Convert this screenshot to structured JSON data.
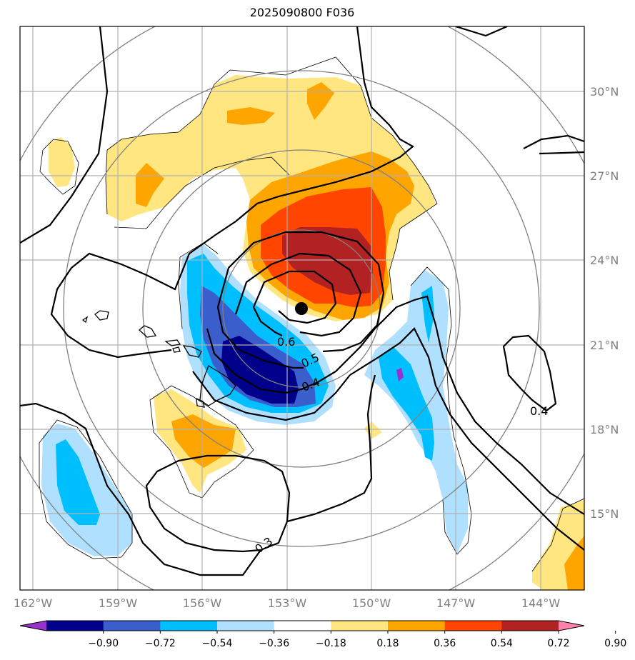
{
  "title": "2025090800 F036",
  "axes": {
    "lat_labels": [
      "30°N",
      "27°N",
      "24°N",
      "21°N",
      "18°N",
      "15°N"
    ],
    "lon_labels": [
      "162°W",
      "159°W",
      "156°W",
      "153°W",
      "150°W",
      "147°W",
      "144°W"
    ]
  },
  "contour_labels": [
    "0.6",
    "0.5",
    "0.4",
    "0.4",
    "0.3"
  ],
  "colorbar": {
    "ticks": [
      "−0.90",
      "−0.72",
      "−0.54",
      "−0.36",
      "−0.18",
      "0.18",
      "0.36",
      "0.54",
      "0.72",
      "0.90"
    ],
    "colors": [
      "#9932cc",
      "#00008b",
      "#3a5fcd",
      "#00bfff",
      "#b0e0ff",
      "#ffffff",
      "#ffe680",
      "#ffa500",
      "#ff4500",
      "#b22222",
      "#ff82ab"
    ]
  }
}
